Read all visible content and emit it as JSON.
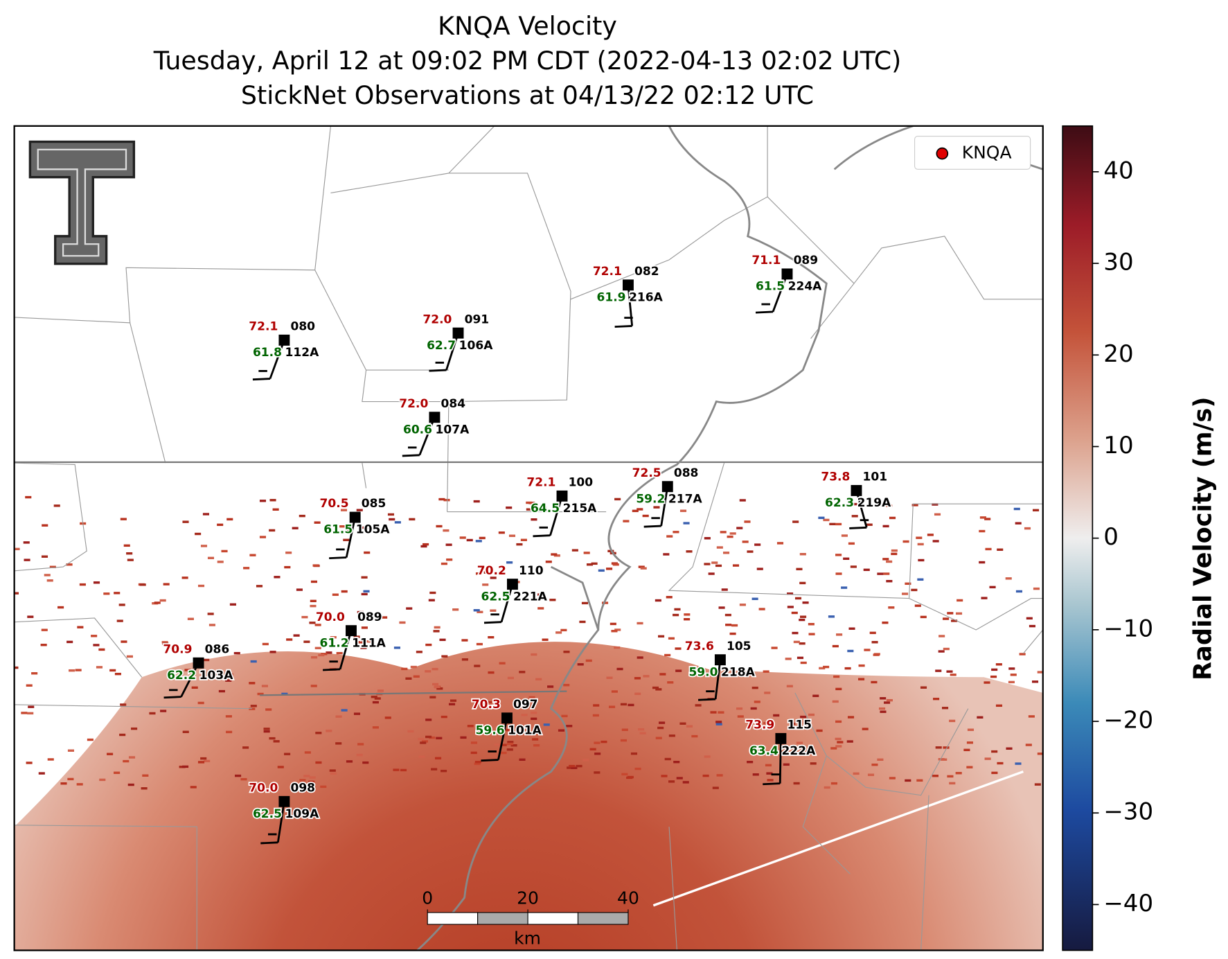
{
  "title_lines": [
    "KNQA Velocity",
    "Tuesday, April 12 at 09:02 PM CDT (2022-04-13 02:02 UTC)",
    "StickNet Observations at 04/13/22 02:12 UTC"
  ],
  "legend": {
    "label": "KNQA",
    "color": "#e00000"
  },
  "colorbar": {
    "label": "Radial Velocity (m/s)",
    "lim": [
      -45,
      45
    ],
    "ticks": [
      {
        "value": -40,
        "label": "−40"
      },
      {
        "value": -30,
        "label": "−30"
      },
      {
        "value": -20,
        "label": "−20"
      },
      {
        "value": -10,
        "label": "−10"
      },
      0,
      10,
      20,
      30,
      40
    ]
  },
  "scale_bar": {
    "unit": "km",
    "lim": [
      0,
      40
    ],
    "ticks": [
      0,
      20,
      40
    ]
  },
  "stations": [
    {
      "id": "112A",
      "temperature": "72.1",
      "dewpoint": "61.8",
      "value": "080"
    },
    {
      "id": "106A",
      "temperature": "72.0",
      "dewpoint": "62.7",
      "value": "091"
    },
    {
      "id": "216A",
      "temperature": "72.1",
      "dewpoint": "61.9",
      "value": "082"
    },
    {
      "id": "224A",
      "temperature": "71.1",
      "dewpoint": "61.5",
      "value": "089"
    },
    {
      "id": "107A",
      "temperature": "72.0",
      "dewpoint": "60.6",
      "value": "084"
    },
    {
      "id": "215A",
      "temperature": "72.1",
      "dewpoint": "64.5",
      "value": "100"
    },
    {
      "id": "217A",
      "temperature": "72.5",
      "dewpoint": "59.2",
      "value": "088"
    },
    {
      "id": "219A",
      "temperature": "73.8",
      "dewpoint": "62.3",
      "value": "101"
    },
    {
      "id": "105A",
      "temperature": "70.5",
      "dewpoint": "61.5",
      "value": "085"
    },
    {
      "id": "221A",
      "temperature": "70.2",
      "dewpoint": "62.5",
      "value": "110"
    },
    {
      "id": "111A",
      "temperature": "70.0",
      "dewpoint": "61.2",
      "value": "089"
    },
    {
      "id": "103A",
      "temperature": "70.9",
      "dewpoint": "62.2",
      "value": "086"
    },
    {
      "id": "218A",
      "temperature": "73.6",
      "dewpoint": "59.0",
      "value": "105"
    },
    {
      "id": "101A",
      "temperature": "70.3",
      "dewpoint": "59.6",
      "value": "097"
    },
    {
      "id": "222A",
      "temperature": "73.9",
      "dewpoint": "63.4",
      "value": "115"
    },
    {
      "id": "109A",
      "temperature": "70.0",
      "dewpoint": "62.5",
      "value": "098"
    }
  ]
}
